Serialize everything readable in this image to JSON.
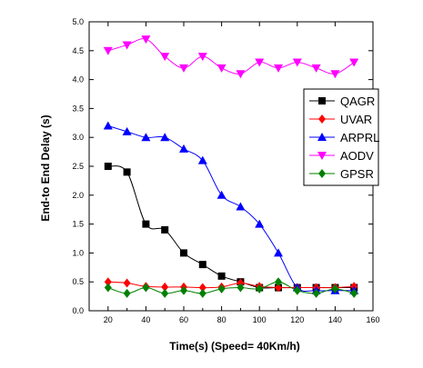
{
  "chart_data": {
    "type": "line",
    "title": "",
    "xlabel": "Time(s) (Speed= 40Km/h)",
    "ylabel": "End-to End Delay (s)",
    "xlim": [
      10,
      160
    ],
    "ylim": [
      0,
      5
    ],
    "xticks": [
      20,
      40,
      60,
      80,
      100,
      120,
      140,
      160
    ],
    "yticks": [
      0.0,
      0.5,
      1.0,
      1.5,
      2.0,
      2.5,
      3.0,
      3.5,
      4.0,
      4.5,
      5.0
    ],
    "ytick_labels": [
      "0.0",
      "0.5",
      "1.0",
      "1.5",
      "2.0",
      "2.5",
      "3.0",
      "3.5",
      "4.0",
      "4.5",
      "5.0"
    ],
    "x": [
      20,
      30,
      40,
      50,
      60,
      70,
      80,
      90,
      100,
      110,
      120,
      130,
      140,
      150
    ],
    "legend_position": "right",
    "series": [
      {
        "name": "QAGR",
        "color": "#000000",
        "marker": "square",
        "values": [
          2.5,
          2.4,
          1.5,
          1.4,
          1.0,
          0.8,
          0.6,
          0.5,
          0.4,
          0.4,
          0.4,
          0.4,
          0.4,
          0.4
        ]
      },
      {
        "name": "UVAR",
        "color": "#ff0000",
        "marker": "diamond",
        "values": [
          0.5,
          0.48,
          0.42,
          0.41,
          0.41,
          0.4,
          0.41,
          0.48,
          0.42,
          0.4,
          0.4,
          0.4,
          0.4,
          0.42
        ]
      },
      {
        "name": "ARPRL",
        "color": "#0000ff",
        "marker": "triangle-up",
        "values": [
          3.2,
          3.1,
          3.0,
          3.0,
          2.8,
          2.6,
          2.0,
          1.8,
          1.5,
          1.0,
          0.4,
          0.35,
          0.35,
          0.35
        ]
      },
      {
        "name": "AODV",
        "color": "#ff00ff",
        "marker": "triangle-down",
        "values": [
          4.5,
          4.6,
          4.7,
          4.4,
          4.2,
          4.4,
          4.2,
          4.1,
          4.3,
          4.2,
          4.3,
          4.2,
          4.1,
          4.3
        ]
      },
      {
        "name": "GPSR",
        "color": "#008000",
        "marker": "diamond",
        "values": [
          0.4,
          0.3,
          0.4,
          0.3,
          0.35,
          0.3,
          0.38,
          0.4,
          0.38,
          0.5,
          0.35,
          0.3,
          0.38,
          0.3
        ]
      }
    ]
  }
}
